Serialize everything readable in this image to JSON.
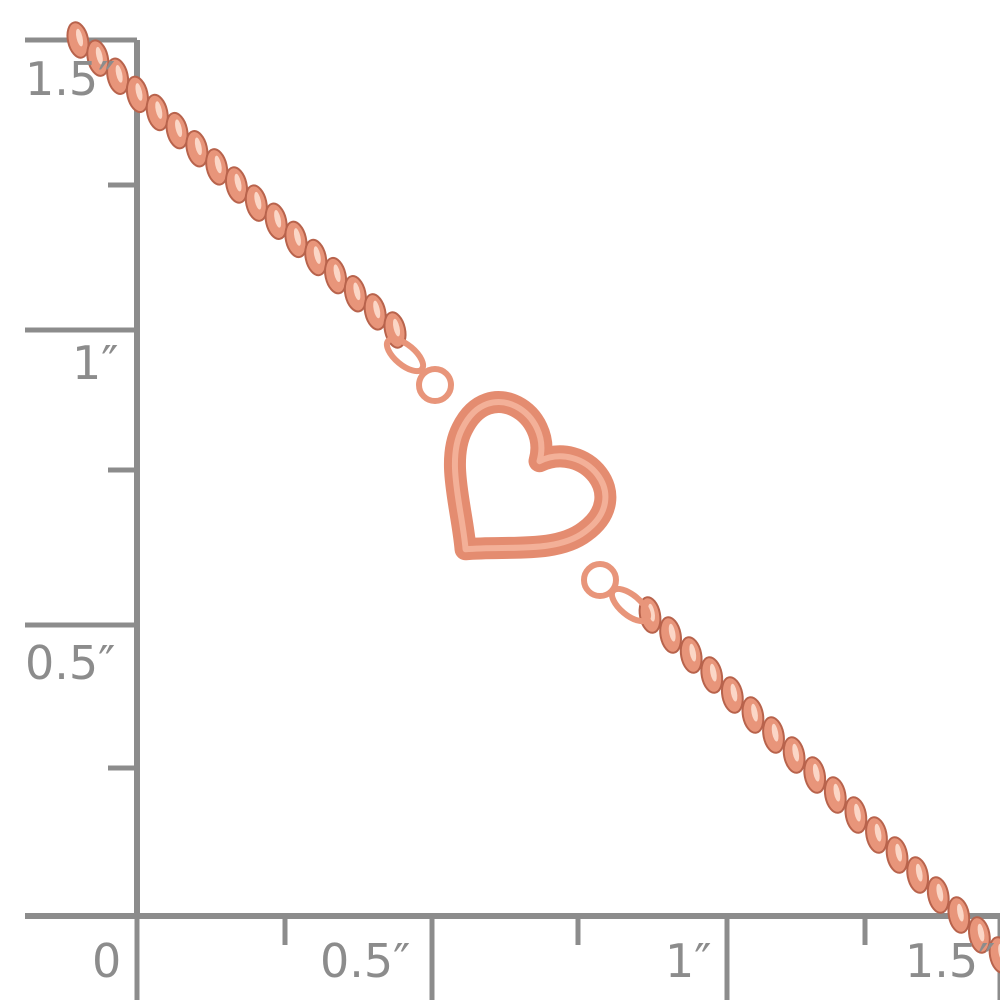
{
  "ruler": {
    "x_labels": [
      "0",
      "0.5″",
      "1″",
      "1.5″"
    ],
    "y_labels": [
      "1.5″",
      "1″",
      "0.5″"
    ],
    "color": "#8c8c8c"
  },
  "product": {
    "metal_color": "#e8957a",
    "highlight_color": "#fbd6c6",
    "shadow_color": "#b8634c"
  }
}
